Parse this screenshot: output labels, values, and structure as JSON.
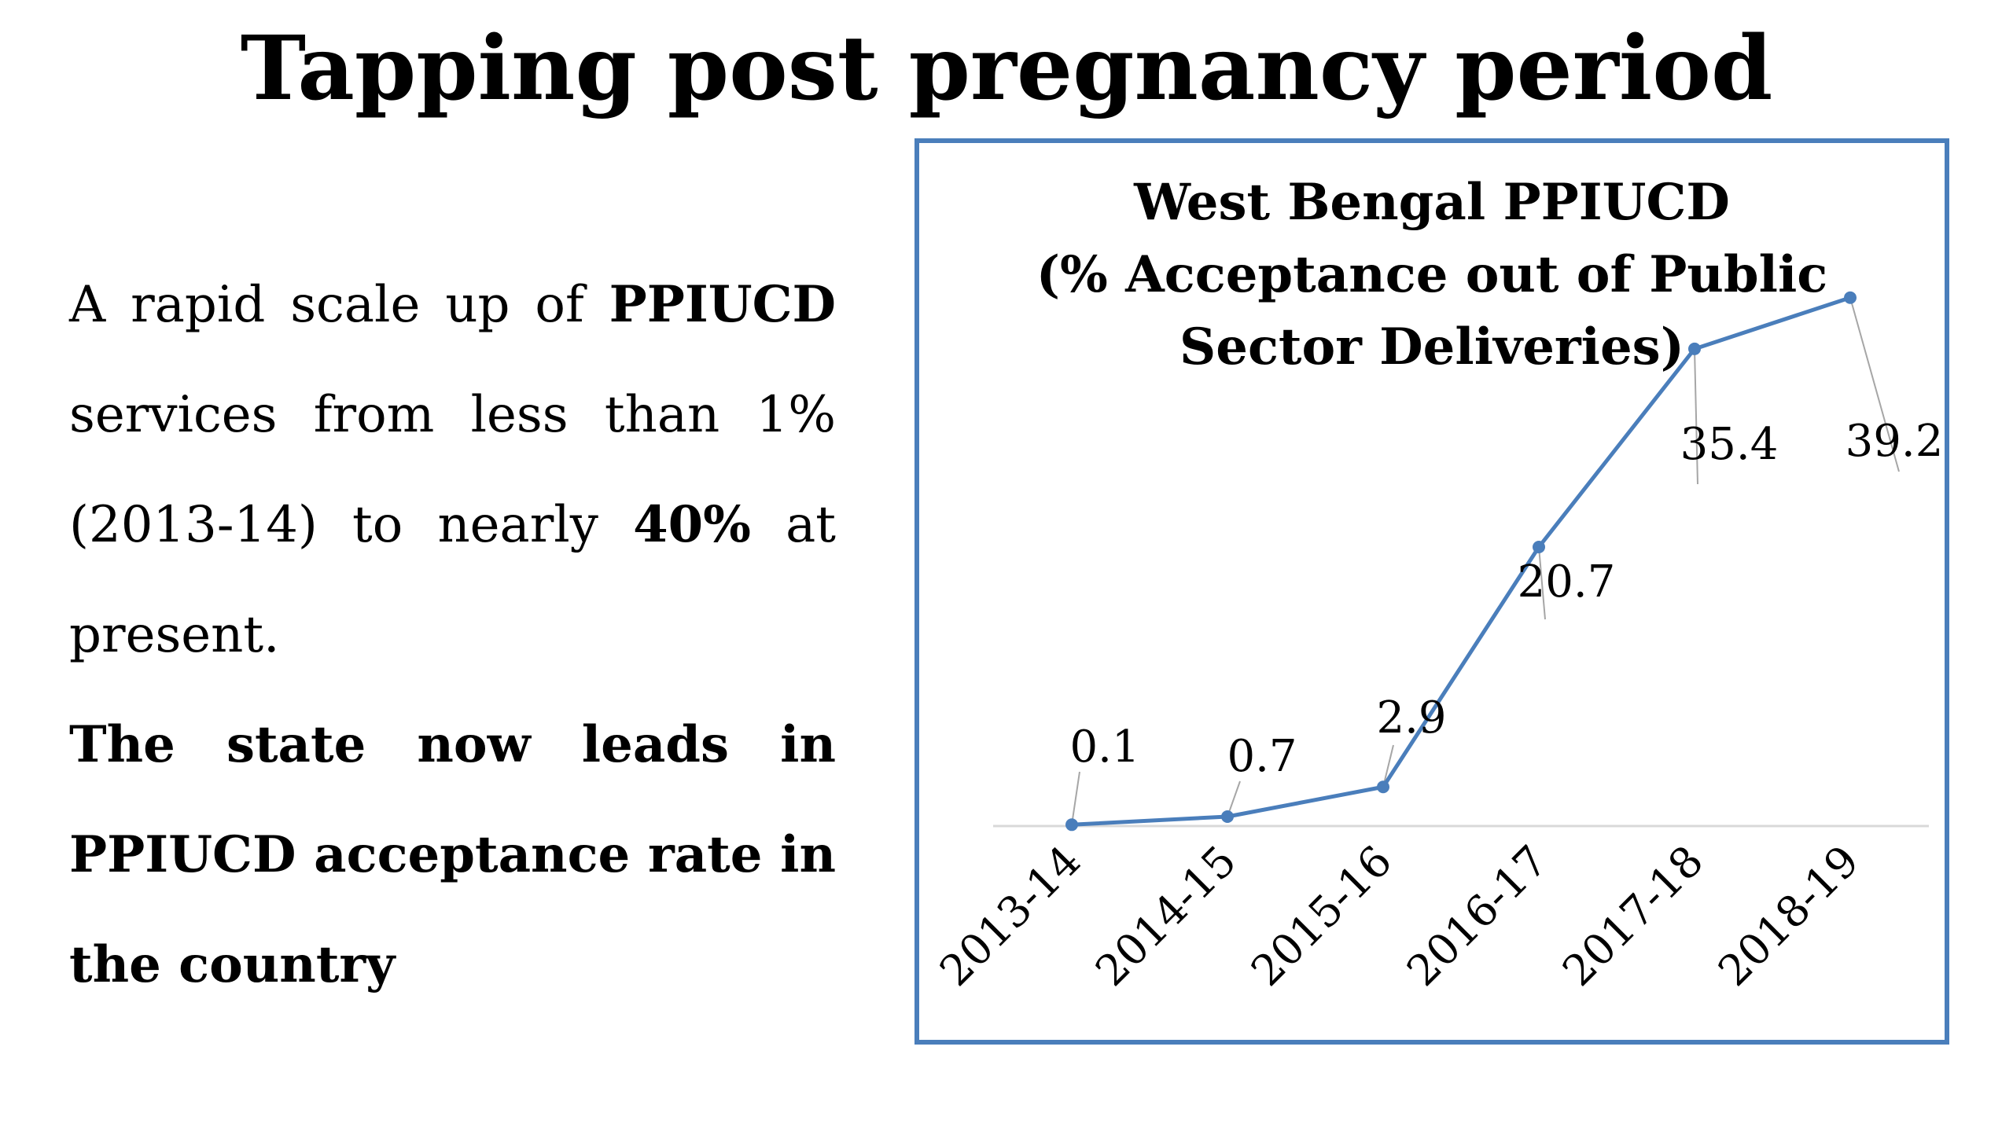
{
  "slide": {
    "title": "Tapping post pregnancy period",
    "paragraph1": {
      "seg1": "A rapid scale up of ",
      "seg2": "PPIUCD",
      "seg3": " services from less than 1% (2013-14) to nearly ",
      "seg4": "40%",
      "seg5": " at present."
    },
    "paragraph2": "The state now leads in PPIUCD acceptance rate in the country"
  },
  "colors": {
    "line": "#4a7ebb",
    "frame": "#4a7ebb",
    "axis": "#d9d9d9",
    "leader": "#a6a6a6"
  },
  "chart_data": {
    "type": "line",
    "title_lines": [
      "West Bengal PPIUCD",
      "(% Acceptance out of  Public",
      "Sector Deliveries)"
    ],
    "categories": [
      "2013-14",
      "2014-15",
      "2015-16",
      "2016-17",
      "2017-18",
      "2018-19"
    ],
    "values": [
      0.1,
      0.7,
      2.9,
      20.7,
      35.4,
      39.2
    ],
    "data_labels": [
      "0.1",
      "0.7",
      "2.9",
      "20.7",
      "35.4",
      "39.2"
    ],
    "ylim": [
      0,
      40
    ],
    "grid": false,
    "legend": "none",
    "xlabel": "",
    "ylabel": ""
  }
}
